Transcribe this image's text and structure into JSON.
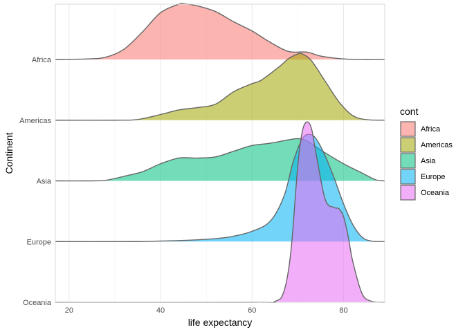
{
  "chart_data": {
    "type": "ridgeline",
    "xlabel": "life expectancy",
    "ylabel": "Continent",
    "xlim": [
      17,
      89
    ],
    "x_ticks": [
      20,
      40,
      60,
      80
    ],
    "grid": true,
    "legend": {
      "title": "cont",
      "position": "right"
    },
    "series": [
      {
        "name": "Africa",
        "color": "#F8766D",
        "x": [
          17,
          24,
          28,
          32,
          36,
          40,
          44,
          45,
          48,
          52,
          56,
          60,
          64,
          68,
          72,
          75,
          80,
          85,
          89
        ],
        "density": [
          0,
          0.0005,
          0.002,
          0.009,
          0.024,
          0.041,
          0.0485,
          0.049,
          0.047,
          0.042,
          0.033,
          0.025,
          0.015,
          0.007,
          0.0065,
          0.003,
          0.0005,
          0,
          0
        ]
      },
      {
        "name": "Americas",
        "color": "#A3A500",
        "x": [
          17,
          30,
          35,
          40,
          44,
          48,
          52,
          56,
          60,
          62,
          66,
          68,
          70,
          71,
          73,
          76,
          79,
          82,
          85,
          89
        ],
        "density": [
          0,
          0,
          0.0006,
          0.005,
          0.009,
          0.011,
          0.014,
          0.025,
          0.032,
          0.035,
          0.047,
          0.054,
          0.058,
          0.058,
          0.052,
          0.034,
          0.016,
          0.004,
          0.0005,
          0
        ]
      },
      {
        "name": "Asia",
        "color": "#00BF7D",
        "x": [
          17,
          25,
          28,
          32,
          36,
          40,
          44,
          48,
          52,
          56,
          60,
          64,
          68,
          70,
          72,
          75,
          80,
          84,
          87,
          89
        ],
        "density": [
          0,
          0,
          0.0005,
          0.004,
          0.008,
          0.015,
          0.02,
          0.02,
          0.021,
          0.026,
          0.031,
          0.033,
          0.036,
          0.037,
          0.035,
          0.027,
          0.015,
          0.007,
          0.001,
          0
        ]
      },
      {
        "name": "Europe",
        "color": "#00B0F6",
        "x": [
          17,
          35,
          40,
          45,
          50,
          55,
          60,
          64,
          67,
          69,
          71,
          72.5,
          74,
          76,
          78,
          80,
          82,
          84,
          86,
          89
        ],
        "density": [
          0,
          0,
          0.0005,
          0.001,
          0.002,
          0.004,
          0.009,
          0.018,
          0.04,
          0.07,
          0.09,
          0.094,
          0.09,
          0.075,
          0.055,
          0.033,
          0.015,
          0.004,
          0.0005,
          0
        ]
      },
      {
        "name": "Oceania",
        "color": "#E76BF3",
        "x": [
          17,
          60,
          65,
          67,
          68.5,
          70,
          71,
          72,
          73,
          74,
          76,
          78,
          79,
          80,
          81,
          82,
          84,
          86,
          89
        ],
        "density": [
          0,
          0,
          0.0008,
          0.01,
          0.045,
          0.12,
          0.15,
          0.158,
          0.152,
          0.13,
          0.09,
          0.083,
          0.082,
          0.075,
          0.058,
          0.036,
          0.008,
          0.001,
          0
        ]
      }
    ]
  }
}
